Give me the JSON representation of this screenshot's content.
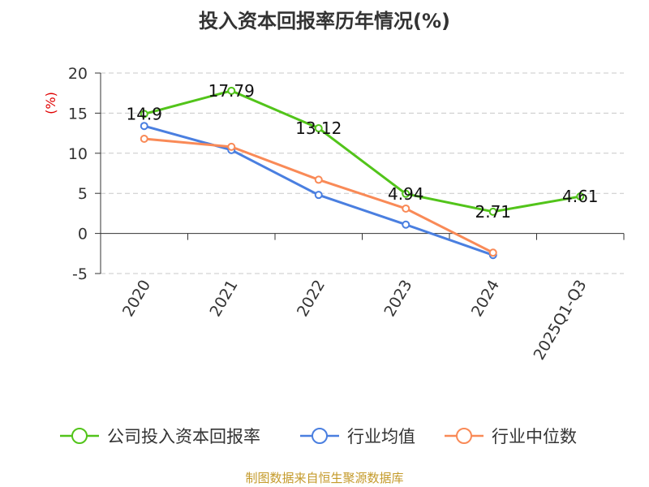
{
  "chart_data": {
    "type": "line",
    "title": "投入资本回报率历年情况(%)",
    "ylabel": "(%)",
    "xlabel": "",
    "categories": [
      "2020",
      "2021",
      "2022",
      "2023",
      "2024",
      "2025Q1-Q3"
    ],
    "ylim": [
      -5,
      20
    ],
    "yticks": [
      -5,
      0,
      5,
      10,
      15,
      20
    ],
    "grid": true,
    "legend_position": "bottom",
    "series": [
      {
        "name": "公司投入资本回报率",
        "color": "#52c41a",
        "values": [
          14.9,
          17.79,
          13.12,
          4.94,
          2.71,
          4.61
        ],
        "labels": [
          "14.9",
          "17.79",
          "13.12",
          "4.94",
          "2.71",
          "4.61"
        ]
      },
      {
        "name": "行业均值",
        "color": "#4a7fe0",
        "values": [
          13.4,
          10.4,
          4.8,
          1.1,
          -2.7,
          null
        ]
      },
      {
        "name": "行业中位数",
        "color": "#f98a57",
        "values": [
          11.8,
          10.8,
          6.7,
          3.1,
          -2.4,
          null
        ]
      }
    ]
  },
  "source": "制图数据来自恒生聚源数据库"
}
